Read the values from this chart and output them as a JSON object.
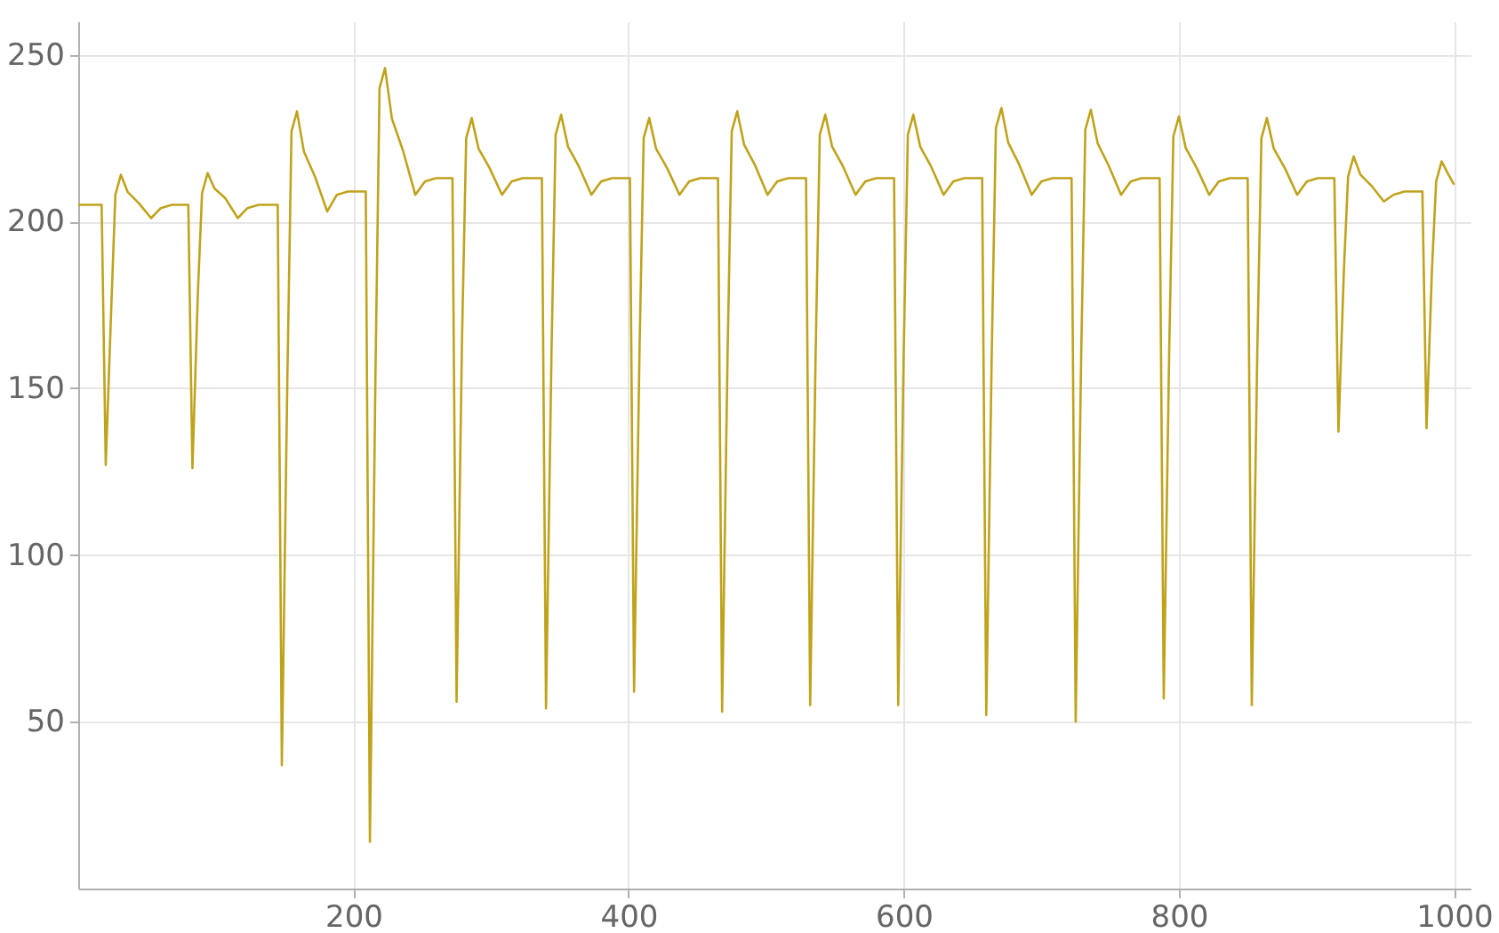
{
  "chart_data": {
    "type": "line",
    "x": [
      0,
      10,
      17,
      20,
      24,
      27,
      31,
      36,
      44,
      53,
      60,
      68,
      80,
      83,
      87,
      90,
      94,
      99,
      107,
      116,
      123,
      131,
      145,
      148,
      152,
      155,
      159,
      164,
      172,
      181,
      188,
      196,
      209,
      212,
      216,
      219,
      223,
      228,
      236,
      245,
      252,
      260,
      272,
      275,
      279,
      282,
      286,
      291,
      299,
      308,
      315,
      323,
      337,
      340,
      344,
      347,
      351,
      356,
      364,
      373,
      380,
      388,
      401,
      404,
      408,
      411,
      415,
      420,
      428,
      437,
      444,
      452,
      465,
      468,
      472,
      475,
      479,
      484,
      492,
      501,
      508,
      516,
      529,
      532,
      536,
      539,
      543,
      548,
      556,
      565,
      572,
      580,
      593,
      596,
      600,
      603,
      607,
      612,
      620,
      629,
      636,
      644,
      657,
      660,
      664,
      667,
      671,
      676,
      684,
      693,
      700,
      708,
      722,
      725,
      729,
      732,
      736,
      741,
      749,
      758,
      765,
      773,
      786,
      789,
      793,
      796,
      800,
      805,
      813,
      822,
      829,
      837,
      850,
      853,
      857,
      860,
      864,
      869,
      877,
      886,
      893,
      901,
      913,
      916,
      920,
      923,
      927,
      932,
      940,
      949,
      956,
      964,
      977,
      980,
      984,
      987,
      991,
      996,
      1000
    ],
    "series": [
      {
        "color": "#bfa31c",
        "values": [
          205,
          205,
          205,
          127,
          174,
          208,
          214,
          208.8,
          205.5,
          201,
          204,
          205,
          205,
          126,
          179,
          208.5,
          214.5,
          209.9,
          206.9,
          201,
          204,
          205,
          205,
          37,
          153,
          227,
          233,
          221,
          213.5,
          203,
          208,
          209,
          209,
          14,
          153,
          240,
          246,
          230.8,
          221.3,
          208,
          212,
          213,
          213,
          56,
          166,
          225,
          231,
          221.8,
          216,
          208,
          212,
          213,
          213,
          54,
          161,
          226,
          232,
          222.4,
          216.4,
          208,
          212,
          213,
          213,
          59,
          162,
          225,
          231,
          221.8,
          216,
          208,
          212,
          213,
          213,
          53,
          161,
          227,
          233,
          223,
          216.8,
          208,
          212,
          213,
          213,
          55,
          161,
          226,
          232,
          222.4,
          216.4,
          208,
          212,
          213,
          213,
          55,
          161,
          226,
          232,
          222.4,
          216.4,
          208,
          212,
          213,
          213,
          52,
          161,
          228,
          234,
          223.6,
          217,
          208,
          212,
          213,
          213,
          50,
          160,
          227.5,
          233.5,
          223.4,
          216.7,
          208,
          212,
          213,
          213,
          57,
          162,
          225.5,
          231.5,
          222,
          216,
          208,
          212,
          213,
          213,
          55,
          161,
          225,
          231,
          221.8,
          216,
          208,
          212,
          213,
          213,
          137,
          186,
          213.5,
          219.5,
          214,
          210.7,
          206,
          208,
          209,
          209,
          138,
          186,
          212,
          218,
          214,
          211
        ]
      }
    ],
    "xlim": [
      0,
      1012
    ],
    "ylim": [
      0,
      260
    ],
    "xticks": [
      200,
      400,
      600,
      800,
      1000
    ],
    "yticks": [
      50,
      100,
      150,
      200,
      250
    ],
    "grid": true
  }
}
